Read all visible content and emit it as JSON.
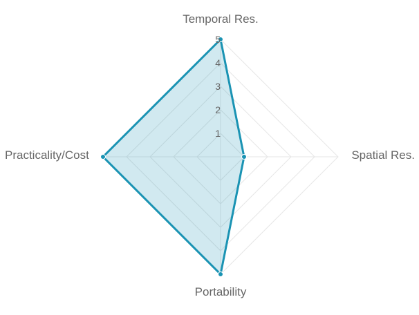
{
  "chart_data": {
    "type": "radar",
    "axes": [
      "Temporal Res.",
      "Spatial Res.",
      "Portability",
      "Practicality/Cost"
    ],
    "r_range": [
      0,
      5
    ],
    "ticks": [
      1,
      2,
      3,
      4,
      5
    ],
    "grid": true,
    "series": [
      {
        "values": [
          5,
          1,
          5,
          5
        ]
      }
    ],
    "colors": {
      "line": "#1a93b3",
      "fill": "rgba(26,147,179,0.2)",
      "grid": "#e6e6e6",
      "text": "#666666"
    }
  }
}
